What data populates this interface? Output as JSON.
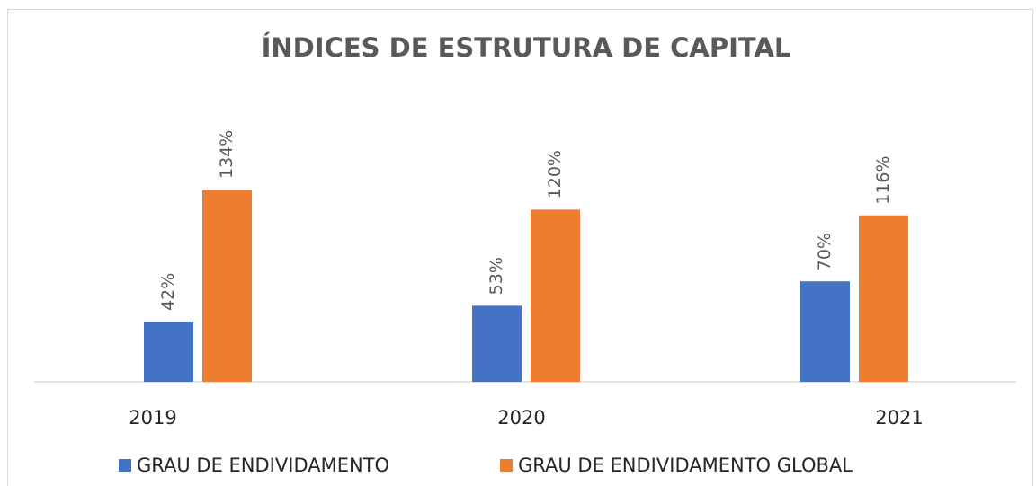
{
  "chart_data": {
    "type": "bar",
    "title": "ÍNDICES DE ESTRUTURA DE CAPITAL",
    "categories": [
      "2019",
      "2020",
      "2021"
    ],
    "series": [
      {
        "name": "GRAU DE ENDIVIDAMENTO",
        "color": "#4472c4",
        "values": [
          42,
          53,
          70
        ],
        "value_labels": [
          "42%",
          "53%",
          "70%"
        ]
      },
      {
        "name": "GRAU DE ENDIVIDAMENTO GLOBAL",
        "color": "#ed7d31",
        "values": [
          134,
          120,
          116
        ],
        "value_labels": [
          "134%",
          "120%",
          "116%"
        ]
      }
    ]
  }
}
